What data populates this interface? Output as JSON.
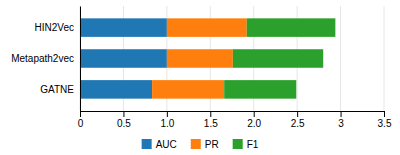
{
  "chart_data": {
    "type": "bar",
    "orientation": "horizontal",
    "stacked": true,
    "categories": [
      "HIN2Vec",
      "Metapath2vec",
      "GATNE"
    ],
    "series": [
      {
        "name": "AUC",
        "values": [
          1.0,
          1.0,
          0.83
        ]
      },
      {
        "name": "PR",
        "values": [
          0.92,
          0.76,
          0.83
        ]
      },
      {
        "name": "F1",
        "values": [
          1.02,
          1.04,
          0.83
        ]
      }
    ],
    "xlim": [
      0,
      3.5
    ],
    "xticks": [
      0,
      0.5,
      {
        "value": 1,
        "label": "1.0"
      },
      1.5,
      {
        "value": 2,
        "label": "2.0"
      },
      2.5,
      3,
      3.5
    ],
    "grid": true,
    "legend": "bottom"
  }
}
